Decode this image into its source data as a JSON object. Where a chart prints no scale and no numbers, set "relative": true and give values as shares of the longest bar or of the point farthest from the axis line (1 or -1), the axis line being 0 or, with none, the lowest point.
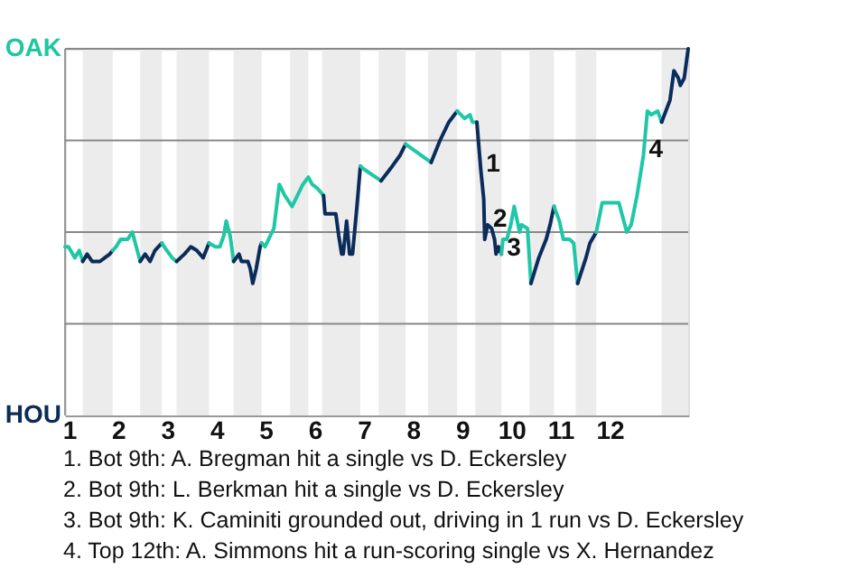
{
  "chart_data": {
    "type": "line",
    "relative": true,
    "xlim": [
      0.9,
      13.58
    ],
    "xticks": [
      1,
      2,
      3,
      4,
      5,
      6,
      7,
      8,
      9,
      10,
      11,
      12
    ],
    "line_style": "solid",
    "series": [
      {
        "color": "#1fc7a0",
        "x": [
          0.9,
          0.97,
          1.1,
          1.19,
          1.26
        ],
        "values": [
          0.46,
          0.46,
          0.43,
          0.45,
          0.42
        ]
      },
      {
        "color": "#0b2c55",
        "x": [
          1.26,
          1.35,
          1.45,
          1.61,
          1.71,
          1.81,
          1.87
        ],
        "values": [
          0.42,
          0.44,
          0.42,
          0.42,
          0.43,
          0.44,
          0.45
        ]
      },
      {
        "color": "#1fc7a1",
        "x": [
          1.87,
          1.94,
          2.03,
          2.17,
          2.27,
          2.43
        ],
        "values": [
          0.45,
          0.46,
          0.48,
          0.48,
          0.5,
          0.42
        ]
      },
      {
        "color": "#0b2c56",
        "x": [
          2.43,
          2.53,
          2.63,
          2.73,
          2.87
        ],
        "values": [
          0.42,
          0.44,
          0.42,
          0.45,
          0.47
        ]
      },
      {
        "color": "#1fc7a2",
        "x": [
          2.87,
          2.97,
          3.08,
          3.17
        ],
        "values": [
          0.47,
          0.45,
          0.43,
          0.42
        ]
      },
      {
        "color": "#0b2c57",
        "x": [
          3.17,
          3.33,
          3.46,
          3.58,
          3.71,
          3.83
        ],
        "values": [
          0.42,
          0.44,
          0.46,
          0.45,
          0.43,
          0.47
        ]
      },
      {
        "color": "#1fc7a3",
        "x": [
          3.83,
          3.96,
          4.05,
          4.13,
          4.18,
          4.26,
          4.33
        ],
        "values": [
          0.47,
          0.46,
          0.46,
          0.49,
          0.53,
          0.49,
          0.42
        ]
      },
      {
        "color": "#0b2c58",
        "x": [
          4.33,
          4.44,
          4.49,
          4.62,
          4.67,
          4.72,
          4.79,
          4.87,
          4.9
        ],
        "values": [
          0.42,
          0.44,
          0.42,
          0.42,
          0.4,
          0.36,
          0.4,
          0.46,
          0.47
        ]
      },
      {
        "color": "#1fc7a4",
        "x": [
          4.9,
          4.97,
          5.04,
          5.15,
          5.26,
          5.37,
          5.52,
          5.63,
          5.74,
          5.85,
          5.93,
          6.03,
          6.16
        ],
        "values": [
          0.47,
          0.46,
          0.48,
          0.51,
          0.63,
          0.6,
          0.57,
          0.6,
          0.63,
          0.65,
          0.63,
          0.62,
          0.6
        ]
      },
      {
        "color": "#0b2c59",
        "x": [
          6.16,
          6.19,
          6.41,
          6.47,
          6.53,
          6.56,
          6.63,
          6.69,
          6.75,
          6.84,
          6.91
        ],
        "values": [
          0.6,
          0.55,
          0.55,
          0.49,
          0.44,
          0.44,
          0.53,
          0.44,
          0.44,
          0.57,
          0.68
        ]
      },
      {
        "color": "#1fc7a5",
        "x": [
          6.91,
          7.0,
          7.33
        ],
        "values": [
          0.68,
          0.67,
          0.64
        ]
      },
      {
        "color": "#0b2c5a",
        "x": [
          7.33,
          7.56,
          7.72,
          7.83
        ],
        "values": [
          0.64,
          0.68,
          0.71,
          0.74
        ]
      },
      {
        "color": "#1fc7a6",
        "x": [
          7.83,
          8.35
        ],
        "values": [
          0.74,
          0.69
        ]
      },
      {
        "color": "#0b2c5b",
        "x": [
          8.35,
          8.53,
          8.71,
          8.88
        ],
        "values": [
          0.69,
          0.75,
          0.8,
          0.83
        ]
      },
      {
        "color": "#1fc7a7",
        "x": [
          8.88,
          9.03,
          9.14,
          9.19,
          9.28
        ],
        "values": [
          0.83,
          0.81,
          0.82,
          0.8,
          0.8
        ]
      },
      {
        "color": "#0b2c5c",
        "x": [
          9.28,
          9.36,
          9.42,
          9.44,
          9.47,
          9.5,
          9.58,
          9.64,
          9.67,
          9.72,
          9.78
        ],
        "values": [
          0.8,
          0.67,
          0.59,
          0.48,
          0.5,
          0.52,
          0.51,
          0.48,
          0.44,
          0.46,
          0.44
        ]
      },
      {
        "color": "#1fc7a8",
        "x": [
          9.78,
          9.81,
          9.89,
          9.97,
          10.04,
          10.15,
          10.19,
          10.31,
          10.38
        ],
        "values": [
          0.44,
          0.48,
          0.48,
          0.52,
          0.57,
          0.5,
          0.52,
          0.51,
          0.36
        ]
      },
      {
        "color": "#0b2c5d",
        "x": [
          10.38,
          10.54,
          10.69,
          10.77,
          10.85
        ],
        "values": [
          0.36,
          0.43,
          0.48,
          0.52,
          0.57
        ]
      },
      {
        "color": "#1fc7a9",
        "x": [
          10.85,
          10.96,
          11.04,
          11.17,
          11.25,
          11.33
        ],
        "values": [
          0.57,
          0.53,
          0.48,
          0.48,
          0.47,
          0.36
        ]
      },
      {
        "color": "#0b2c5e",
        "x": [
          11.33,
          11.5,
          11.58,
          11.71
        ],
        "values": [
          0.36,
          0.43,
          0.47,
          0.5
        ]
      },
      {
        "color": "#1fc7aa",
        "x": [
          11.71,
          11.83,
          12.17,
          12.33,
          12.42,
          12.54,
          12.67,
          12.75,
          12.83,
          12.96,
          13.04
        ],
        "values": [
          0.5,
          0.58,
          0.58,
          0.5,
          0.52,
          0.6,
          0.71,
          0.83,
          0.82,
          0.83,
          0.8
        ]
      },
      {
        "color": "#0b2c5f",
        "x": [
          13.04,
          13.21,
          13.29,
          13.38,
          13.42,
          13.5,
          13.58
        ],
        "values": [
          0.8,
          0.86,
          0.94,
          0.92,
          0.9,
          0.92,
          1
        ]
      }
    ],
    "ref_lines": [
      {
        "axis": "y",
        "value": 0.25,
        "color": "#888888"
      },
      {
        "axis": "y",
        "value": 0.5,
        "color": "#888888"
      },
      {
        "axis": "y",
        "value": 0.75,
        "color": "#888888"
      },
      {
        "axis": "y",
        "value": 1,
        "color": "#888888"
      }
    ],
    "bands": [
      {
        "axis": "x",
        "from": 1.26,
        "to": 1.87,
        "color": "#ececec"
      },
      {
        "axis": "x",
        "from": 2.43,
        "to": 2.87,
        "color": "#ececec"
      },
      {
        "axis": "x",
        "from": 3.17,
        "to": 3.83,
        "color": "#ececec"
      },
      {
        "axis": "x",
        "from": 4.33,
        "to": 4.9,
        "color": "#ececec"
      },
      {
        "axis": "x",
        "from": 5.48,
        "to": 5.85,
        "color": "#ececec"
      },
      {
        "axis": "x",
        "from": 6.13,
        "to": 6.91,
        "color": "#ececec"
      },
      {
        "axis": "x",
        "from": 7.28,
        "to": 7.83,
        "color": "#ececec"
      },
      {
        "axis": "x",
        "from": 8.29,
        "to": 8.88,
        "color": "#ececec"
      },
      {
        "axis": "x",
        "from": 9.25,
        "to": 9.78,
        "color": "#ececec"
      },
      {
        "axis": "x",
        "from": 10.35,
        "to": 10.85,
        "color": "#ececec"
      },
      {
        "axis": "x",
        "from": 11.29,
        "to": 11.71,
        "color": "#ececec"
      },
      {
        "axis": "x",
        "from": 13.04,
        "to": 13.58,
        "color": "#ececec"
      }
    ],
    "annotations": [
      "OAK",
      "HOU",
      {
        "text": "1",
        "x": 9.36,
        "y": 0.67
      },
      {
        "text": "2",
        "x": 9.5,
        "y": 0.52
      },
      {
        "text": "3",
        "x": 9.78,
        "y": 0.44
      },
      {
        "text": "4",
        "x": 12.67,
        "y": 0.71
      },
      "1. Bot 9th: A. Bregman hit a single vs D. Eckersley",
      "2. Bot 9th: L. Berkman hit a single vs D. Eckersley",
      "3. Bot 9th: K. Caminiti grounded out, driving in 1 run vs D. Eckersley",
      "4. Top 12th: A. Simmons hit a run-scoring single vs X. Hernandez"
    ]
  }
}
